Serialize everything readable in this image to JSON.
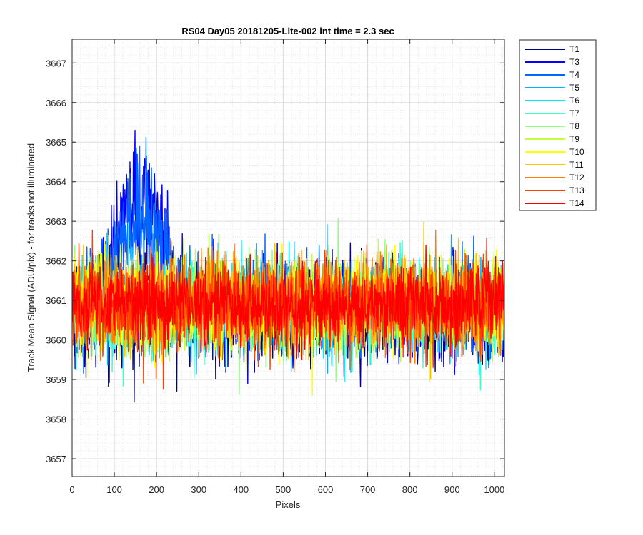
{
  "chart_data": {
    "type": "line",
    "title": "RS04 Day05 20181205-Lite-002 int time = 2.3 sec",
    "xlabel": "Pixels",
    "ylabel": "Track Mean Signal (ADU/pix) - for tracks not illuminated",
    "xlim": [
      0,
      1024
    ],
    "ylim": [
      3656.55,
      3667.6
    ],
    "xticks": [
      0,
      100,
      200,
      300,
      400,
      500,
      600,
      700,
      800,
      900,
      1000
    ],
    "yticks": [
      3657,
      3658,
      3659,
      3660,
      3661,
      3662,
      3663,
      3664,
      3665,
      3666,
      3667
    ],
    "grid": true,
    "minor_grid": true,
    "legend_position": "outside-right-top",
    "series": [
      {
        "name": "T1",
        "color": "#000080",
        "base": 3660.6,
        "noise": 1.0,
        "bump": 0.0
      },
      {
        "name": "T3",
        "color": "#0000ff",
        "base": 3660.8,
        "noise": 0.9,
        "bump": 3.3
      },
      {
        "name": "T4",
        "color": "#0066ff",
        "base": 3660.9,
        "noise": 0.9,
        "bump": 2.5
      },
      {
        "name": "T5",
        "color": "#00b0ff",
        "base": 3660.8,
        "noise": 0.9,
        "bump": 0.0
      },
      {
        "name": "T6",
        "color": "#00e5ff",
        "base": 3660.8,
        "noise": 0.9,
        "bump": 0.0
      },
      {
        "name": "T7",
        "color": "#40ffc0",
        "base": 3660.8,
        "noise": 0.9,
        "bump": 0.0
      },
      {
        "name": "T8",
        "color": "#90ff80",
        "base": 3660.8,
        "noise": 0.9,
        "bump": 0.0
      },
      {
        "name": "T9",
        "color": "#c0ff40",
        "base": 3660.9,
        "noise": 0.9,
        "bump": 0.0
      },
      {
        "name": "T10",
        "color": "#ffff00",
        "base": 3660.9,
        "noise": 0.9,
        "bump": 0.0
      },
      {
        "name": "T11",
        "color": "#ffc000",
        "base": 3660.9,
        "noise": 0.9,
        "bump": 0.0
      },
      {
        "name": "T12",
        "color": "#ff8000",
        "base": 3660.9,
        "noise": 0.9,
        "bump": 0.0
      },
      {
        "name": "T13",
        "color": "#ff4000",
        "base": 3660.9,
        "noise": 0.9,
        "bump": 0.0
      },
      {
        "name": "T14",
        "color": "#ff0000",
        "base": 3660.9,
        "noise": 0.8,
        "bump": 0.0
      }
    ]
  }
}
